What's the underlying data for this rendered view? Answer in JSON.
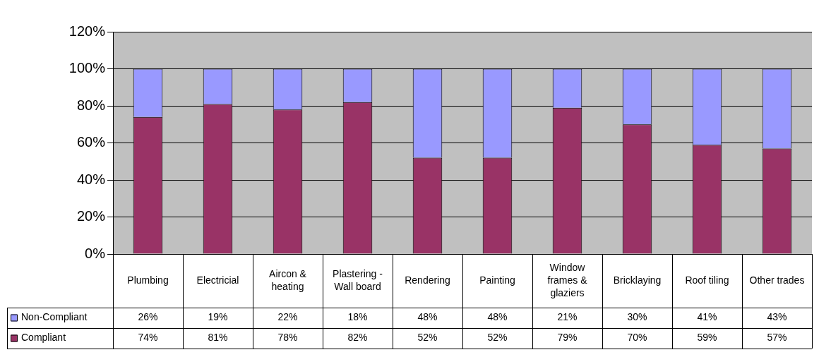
{
  "chart_data": {
    "type": "bar",
    "stacked": true,
    "categories": [
      "Plumbing",
      "Electricial",
      "Aircon & heating",
      "Plastering - Wall board",
      "Rendering",
      "Painting",
      "Window frames & glaziers",
      "Bricklaying",
      "Roof tiling",
      "Other trades"
    ],
    "series": [
      {
        "name": "Compliant",
        "color": "#993366",
        "values": [
          74,
          81,
          78,
          82,
          52,
          52,
          79,
          70,
          59,
          57
        ],
        "value_labels": [
          "74%",
          "81%",
          "78%",
          "82%",
          "52%",
          "52%",
          "79%",
          "70%",
          "59%",
          "57%"
        ]
      },
      {
        "name": "Non-Compliant",
        "color": "#9999ff",
        "values": [
          26,
          19,
          22,
          18,
          48,
          48,
          21,
          30,
          41,
          43
        ],
        "value_labels": [
          "26%",
          "19%",
          "22%",
          "18%",
          "48%",
          "48%",
          "21%",
          "30%",
          "41%",
          "43%"
        ]
      }
    ],
    "ylim": [
      0,
      120
    ],
    "yticks": [
      {
        "value": 0,
        "label": "0%"
      },
      {
        "value": 20,
        "label": "20%"
      },
      {
        "value": 40,
        "label": "40%"
      },
      {
        "value": 60,
        "label": "60%"
      },
      {
        "value": 80,
        "label": "80%"
      },
      {
        "value": 100,
        "label": "100%"
      },
      {
        "value": 120,
        "label": "120%"
      }
    ],
    "grid": "y",
    "legend": "bottom"
  }
}
